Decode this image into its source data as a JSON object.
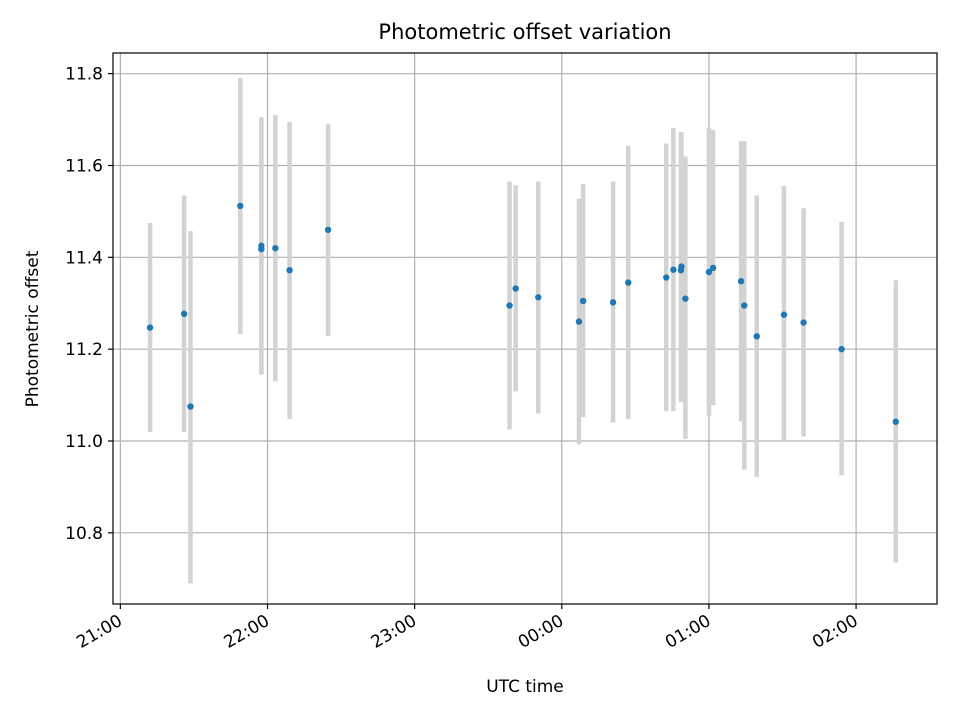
{
  "chart_data": {
    "type": "scatter",
    "title": "Photometric offset variation",
    "xlabel": "UTC time",
    "ylabel": "Photometric offset",
    "x_ticks": [
      "21:00",
      "22:00",
      "23:00",
      "00:00",
      "01:00",
      "02:00"
    ],
    "y_ticks": [
      "10.8",
      "11.0",
      "11.2",
      "11.4",
      "11.6",
      "11.8"
    ],
    "x_tick_values": [
      0,
      60,
      120,
      180,
      240,
      300
    ],
    "y_tick_values": [
      10.8,
      11.0,
      11.2,
      11.4,
      11.6,
      11.8
    ],
    "xlim": [
      -3,
      333
    ],
    "ylim": [
      10.645,
      11.845
    ],
    "grid": true,
    "colors": {
      "point": "#1f77b4",
      "errorbar": "#d3d3d3",
      "grid": "#b0b0b0"
    },
    "series": [
      {
        "points": [
          {
            "time": "21:12",
            "x": 12.1,
            "y": 11.247,
            "err_lo": 11.02,
            "err_hi": 11.475
          },
          {
            "time": "21:26",
            "x": 26.0,
            "y": 11.277,
            "err_lo": 11.02,
            "err_hi": 11.535
          },
          {
            "time": "21:29",
            "x": 28.6,
            "y": 11.075,
            "err_lo": 10.69,
            "err_hi": 11.457
          },
          {
            "time": "21:49",
            "x": 48.9,
            "y": 11.512,
            "err_lo": 11.233,
            "err_hi": 11.79
          },
          {
            "time": "21:57",
            "x": 57.5,
            "y": 11.425,
            "err_lo": 11.145,
            "err_hi": 11.705
          },
          {
            "time": "21:57",
            "x": 57.5,
            "y": 11.418,
            "err_lo": 11.145,
            "err_hi": 11.698
          },
          {
            "time": "22:03",
            "x": 63.2,
            "y": 11.42,
            "err_lo": 11.13,
            "err_hi": 11.71
          },
          {
            "time": "22:09",
            "x": 69.0,
            "y": 11.372,
            "err_lo": 11.048,
            "err_hi": 11.695
          },
          {
            "time": "22:25",
            "x": 84.7,
            "y": 11.46,
            "err_lo": 11.228,
            "err_hi": 11.69
          },
          {
            "time": "23:38",
            "x": 158.7,
            "y": 11.295,
            "err_lo": 11.025,
            "err_hi": 11.565
          },
          {
            "time": "23:41",
            "x": 161.2,
            "y": 11.332,
            "err_lo": 11.108,
            "err_hi": 11.557
          },
          {
            "time": "23:51",
            "x": 170.4,
            "y": 11.313,
            "err_lo": 11.06,
            "err_hi": 11.565
          },
          {
            "time": "00:07",
            "x": 187.0,
            "y": 11.26,
            "err_lo": 10.993,
            "err_hi": 11.528
          },
          {
            "time": "00:09",
            "x": 188.7,
            "y": 11.305,
            "err_lo": 11.052,
            "err_hi": 11.56
          },
          {
            "time": "00:21",
            "x": 200.9,
            "y": 11.302,
            "err_lo": 11.04,
            "err_hi": 11.565
          },
          {
            "time": "00:27",
            "x": 207.1,
            "y": 11.345,
            "err_lo": 11.048,
            "err_hi": 11.643
          },
          {
            "time": "00:43",
            "x": 222.6,
            "y": 11.356,
            "err_lo": 11.065,
            "err_hi": 11.648
          },
          {
            "time": "00:45",
            "x": 225.5,
            "y": 11.373,
            "err_lo": 11.065,
            "err_hi": 11.682
          },
          {
            "time": "00:49",
            "x": 228.6,
            "y": 11.372,
            "err_lo": 11.085,
            "err_hi": 11.673
          },
          {
            "time": "00:49",
            "x": 228.8,
            "y": 11.38,
            "err_lo": 11.085,
            "err_hi": 11.673
          },
          {
            "time": "00:50",
            "x": 230.4,
            "y": 11.31,
            "err_lo": 11.005,
            "err_hi": 11.62
          },
          {
            "time": "01:00",
            "x": 240.0,
            "y": 11.368,
            "err_lo": 11.055,
            "err_hi": 11.682
          },
          {
            "time": "01:01",
            "x": 241.7,
            "y": 11.377,
            "err_lo": 11.078,
            "err_hi": 11.677
          },
          {
            "time": "01:13",
            "x": 253.1,
            "y": 11.348,
            "err_lo": 11.043,
            "err_hi": 11.653
          },
          {
            "time": "01:14",
            "x": 254.4,
            "y": 11.295,
            "err_lo": 10.938,
            "err_hi": 11.653
          },
          {
            "time": "01:20",
            "x": 259.5,
            "y": 11.228,
            "err_lo": 10.922,
            "err_hi": 11.535
          },
          {
            "time": "01:31",
            "x": 270.6,
            "y": 11.275,
            "err_lo": 10.998,
            "err_hi": 11.555
          },
          {
            "time": "01:39",
            "x": 278.6,
            "y": 11.258,
            "err_lo": 11.01,
            "err_hi": 11.507
          },
          {
            "time": "01:54",
            "x": 294.1,
            "y": 11.2,
            "err_lo": 10.925,
            "err_hi": 11.477
          },
          {
            "time": "02:16",
            "x": 316.2,
            "y": 11.042,
            "err_lo": 10.735,
            "err_hi": 11.35
          }
        ]
      }
    ]
  }
}
